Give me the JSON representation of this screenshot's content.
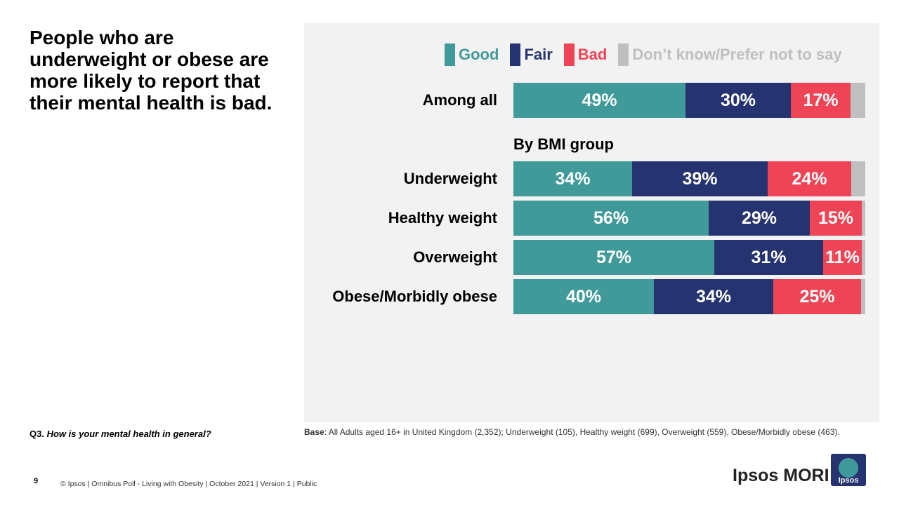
{
  "headline": "People who are underweight or obese are more likely to report that their mental health is bad.",
  "question": {
    "label": "Q3.",
    "text": "How is your mental health in general?"
  },
  "base": {
    "label": "Base",
    "text": ": All Adults aged 16+ in United Kingdom (2,352); Underweight  (105), Healthy weight (699), Overweight  (559), Obese/Morbidly obese (463)."
  },
  "footer": {
    "page": "9",
    "text": "© Ipsos | Omnibus Poll - Living with Obesity | October 2021 | Version 1 | Public"
  },
  "brand": {
    "name": "Ipsos MORI",
    "logo_text": "Ipsos"
  },
  "colors": {
    "good": "#419a9a",
    "fair": "#253370",
    "bad": "#ef4455",
    "dk": "#bfbfbf",
    "panel": "#f2f2f2"
  },
  "chart_data": {
    "type": "bar",
    "orientation": "horizontal-stacked-100",
    "legend": [
      "Good",
      "Fair",
      "Bad",
      "Don’t know/Prefer not to say"
    ],
    "group_label": "By BMI group",
    "categories": [
      "Among all",
      "Underweight",
      "Healthy weight",
      "Overweight",
      "Obese/Morbidly obese"
    ],
    "series": [
      {
        "name": "Good",
        "values": [
          49,
          34,
          56,
          57,
          40
        ]
      },
      {
        "name": "Fair",
        "values": [
          30,
          39,
          29,
          31,
          34
        ]
      },
      {
        "name": "Bad",
        "values": [
          17,
          24,
          15,
          11,
          25
        ]
      },
      {
        "name": "Don’t know/Prefer not to say",
        "values": [
          4,
          4,
          1,
          1,
          1
        ]
      }
    ],
    "value_labels": [
      [
        "49%",
        "30%",
        "17%",
        ""
      ],
      [
        "34%",
        "39%",
        "24%",
        ""
      ],
      [
        "56%",
        "29%",
        "15%",
        ""
      ],
      [
        "57%",
        "31%",
        "11%",
        ""
      ],
      [
        "40%",
        "34%",
        "25%",
        ""
      ]
    ]
  }
}
